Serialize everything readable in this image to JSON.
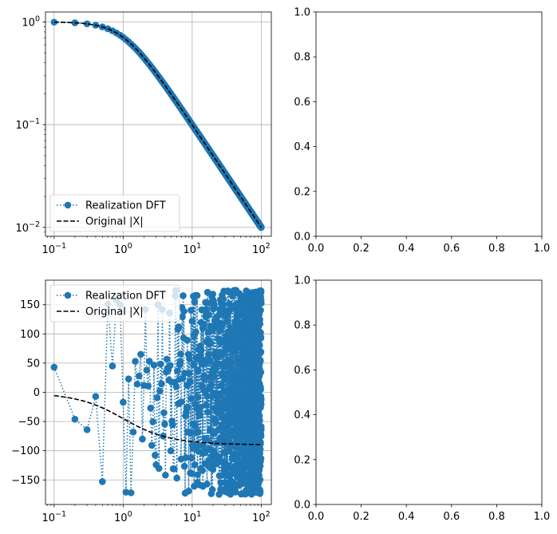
{
  "chart_data": [
    {
      "panel": "top-left",
      "type": "line",
      "title": "",
      "xlabel": "",
      "ylabel": "",
      "xscale": "log",
      "yscale": "log",
      "xlim": [
        0.075,
        140
      ],
      "ylim": [
        0.0082,
        1.25
      ],
      "grid": true,
      "legend_position": "lower-left",
      "x_ticks": [
        {
          "value": 0.1,
          "label_base": "10",
          "label_exp": "−1"
        },
        {
          "value": 1,
          "label_base": "10",
          "label_exp": "0"
        },
        {
          "value": 10,
          "label_base": "10",
          "label_exp": "1"
        },
        {
          "value": 100,
          "label_base": "10",
          "label_exp": "2"
        }
      ],
      "y_ticks": [
        {
          "value": 0.01,
          "label_base": "10",
          "label_exp": "−2"
        },
        {
          "value": 0.1,
          "label_base": "10",
          "label_exp": "−1"
        },
        {
          "value": 1,
          "label_base": "10",
          "label_exp": "0"
        }
      ],
      "series": [
        {
          "name": "Realization DFT",
          "style": "dotted-markers",
          "color": "#1f77b4",
          "model": "magnitude",
          "f_start": 0.1,
          "f_end": 100,
          "f_step": 0.1
        },
        {
          "name": "Original |X|",
          "style": "dashed",
          "color": "#000000",
          "model": "magnitude",
          "f_start": 0.1,
          "f_end": 100
        }
      ]
    },
    {
      "panel": "top-right",
      "type": "line",
      "title": "",
      "xlim": [
        0,
        1
      ],
      "ylim": [
        0,
        1
      ],
      "grid": false,
      "x_ticks": [
        "0.0",
        "0.2",
        "0.4",
        "0.6",
        "0.8",
        "1.0"
      ],
      "y_ticks": [
        "0.0",
        "0.2",
        "0.4",
        "0.6",
        "0.8",
        "1.0"
      ],
      "series": []
    },
    {
      "panel": "bottom-left",
      "type": "line",
      "title": "",
      "xlabel": "",
      "ylabel": "",
      "xscale": "log",
      "yscale": "linear",
      "xlim": [
        0.075,
        140
      ],
      "ylim": [
        -192,
        192
      ],
      "grid": true,
      "legend_position": "upper-left",
      "x_ticks": [
        {
          "value": 0.1,
          "label_base": "10",
          "label_exp": "−1"
        },
        {
          "value": 1,
          "label_base": "10",
          "label_exp": "0"
        },
        {
          "value": 10,
          "label_base": "10",
          "label_exp": "1"
        },
        {
          "value": 100,
          "label_base": "10",
          "label_exp": "2"
        }
      ],
      "y_ticks": [
        -150,
        -100,
        -50,
        0,
        50,
        100,
        150
      ],
      "series": [
        {
          "name": "Realization DFT",
          "style": "dotted-markers",
          "color": "#1f77b4",
          "model": "random-phase",
          "f_start": 0.1,
          "f_end": 100,
          "f_step": 0.1,
          "first_points": [
            {
              "x": 0.1,
              "y": 43
            },
            {
              "x": 0.2,
              "y": -46
            },
            {
              "x": 0.3,
              "y": -64
            },
            {
              "x": 0.4,
              "y": -7
            },
            {
              "x": 0.5,
              "y": -153
            },
            {
              "x": 0.6,
              "y": 151
            },
            {
              "x": 0.7,
              "y": 45
            },
            {
              "x": 0.8,
              "y": 158
            },
            {
              "x": 0.9,
              "y": 150
            },
            {
              "x": 1.0,
              "y": -17
            },
            {
              "x": 1.1,
              "y": -171
            },
            {
              "x": 1.2,
              "y": 23
            },
            {
              "x": 1.3,
              "y": -172
            },
            {
              "x": 1.4,
              "y": -68
            },
            {
              "x": 1.5,
              "y": 53
            },
            {
              "x": 1.6,
              "y": 14
            },
            {
              "x": 1.7,
              "y": 28
            },
            {
              "x": 1.8,
              "y": 65
            },
            {
              "x": 1.9,
              "y": -80
            }
          ]
        },
        {
          "name": "Original |X|",
          "style": "dashed",
          "color": "#000000",
          "model": "phase",
          "f_start": 0.1,
          "f_end": 100
        }
      ]
    },
    {
      "panel": "bottom-right",
      "type": "line",
      "title": "",
      "xlim": [
        0,
        1
      ],
      "ylim": [
        0,
        1
      ],
      "grid": false,
      "x_ticks": [
        "0.0",
        "0.2",
        "0.4",
        "0.6",
        "0.8",
        "1.0"
      ],
      "y_ticks": [
        "0.0",
        "0.2",
        "0.4",
        "0.6",
        "0.8",
        "1.0"
      ],
      "series": []
    }
  ]
}
